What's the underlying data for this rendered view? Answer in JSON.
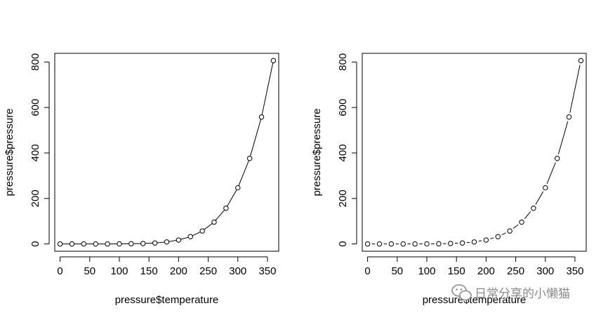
{
  "chart_data": [
    {
      "type": "line",
      "line_style": "solid-with-points",
      "xlabel": "pressure$temperature",
      "ylabel": "pressure$pressure",
      "title": "",
      "x": [
        0,
        20,
        40,
        60,
        80,
        100,
        120,
        140,
        160,
        180,
        200,
        220,
        240,
        260,
        280,
        300,
        320,
        340,
        360
      ],
      "y": [
        0.0002,
        0.0012,
        0.006,
        0.03,
        0.09,
        0.27,
        0.75,
        1.85,
        4.2,
        8.8,
        17.3,
        32.1,
        57,
        96,
        157,
        247,
        376,
        558,
        806
      ],
      "x_ticks": [
        "0",
        "50",
        "100",
        "150",
        "200",
        "250",
        "300",
        "350"
      ],
      "y_ticks": [
        "0",
        "200",
        "400",
        "600",
        "800"
      ],
      "xlim": [
        -9,
        369
      ],
      "ylim": [
        -32,
        838
      ],
      "grid": false
    },
    {
      "type": "line",
      "line_style": "points-with-gapped-lines",
      "xlabel": "pressure$temperature",
      "ylabel": "pressure$pressure",
      "title": "",
      "x": [
        0,
        20,
        40,
        60,
        80,
        100,
        120,
        140,
        160,
        180,
        200,
        220,
        240,
        260,
        280,
        300,
        320,
        340,
        360
      ],
      "y": [
        0.0002,
        0.0012,
        0.006,
        0.03,
        0.09,
        0.27,
        0.75,
        1.85,
        4.2,
        8.8,
        17.3,
        32.1,
        57,
        96,
        157,
        247,
        376,
        558,
        806
      ],
      "x_ticks": [
        "0",
        "50",
        "100",
        "150",
        "200",
        "250",
        "300",
        "350"
      ],
      "y_ticks": [
        "0",
        "200",
        "400",
        "600",
        "800"
      ],
      "xlim": [
        -9,
        369
      ],
      "ylim": [
        -32,
        838
      ],
      "grid": false
    }
  ],
  "watermark": {
    "text": "日常分享的小懒猫",
    "icon": "wechat-icon"
  }
}
